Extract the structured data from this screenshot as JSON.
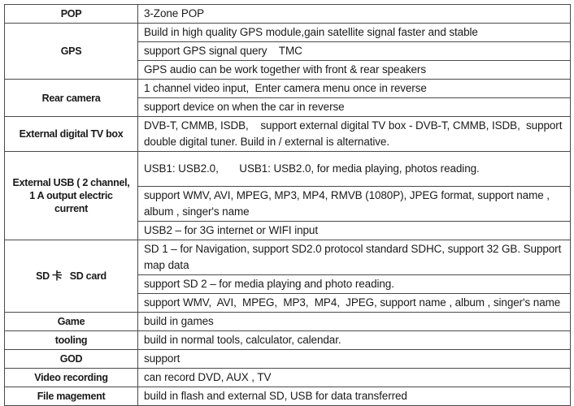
{
  "table": {
    "sections": [
      {
        "feature": "POP",
        "details": [
          "3-Zone POP"
        ]
      },
      {
        "feature": "GPS",
        "details": [
          "Build in high quality GPS module,gain satellite signal faster and stable",
          "support GPS signal query    TMC",
          "GPS audio can be work together with front & rear speakers"
        ]
      },
      {
        "feature": "Rear camera",
        "details": [
          "1 channel video input,  Enter camera menu once in reverse",
          "support device on when the car in reverse"
        ]
      },
      {
        "feature": "External digital TV box",
        "details": [
          "DVB-T, CMMB, ISDB,    support external digital TV box - DVB-T, CMMB, ISDB,  support double digital tuner. Build in / external is alternative."
        ]
      },
      {
        "feature": "External USB ( 2 channel,\n1 A output electric\ncurrent",
        "details": [
          "USB1: USB2.0,       USB1: USB2.0, for media playing, photos reading.",
          "support WMV, AVI, MPEG, MP3, MP4, RMVB (1080P), JPEG format, support name , album , singer's name",
          "USB2 – for 3G internet or WIFI input"
        ]
      },
      {
        "feature": "SD 卡   SD card",
        "details": [
          "SD 1 – for Navigation, support SD2.0 protocol standard SDHC, support 32 GB. Support map data",
          "support SD 2 – for media playing and photo reading.",
          "support WMV,  AVI,  MPEG,  MP3,  MP4,  JPEG, support name , album , singer's name"
        ]
      },
      {
        "feature": "Game",
        "details": [
          "build in games"
        ]
      },
      {
        "feature": "tooling",
        "details": [
          "build in normal tools, calculator, calendar."
        ]
      },
      {
        "feature": "GOD",
        "details": [
          "support"
        ]
      },
      {
        "feature": "Video recording",
        "details": [
          "can record DVD, AUX , TV"
        ]
      },
      {
        "feature": "File magement",
        "details": [
          "build in flash and external SD, USB for data transferred"
        ]
      }
    ]
  }
}
